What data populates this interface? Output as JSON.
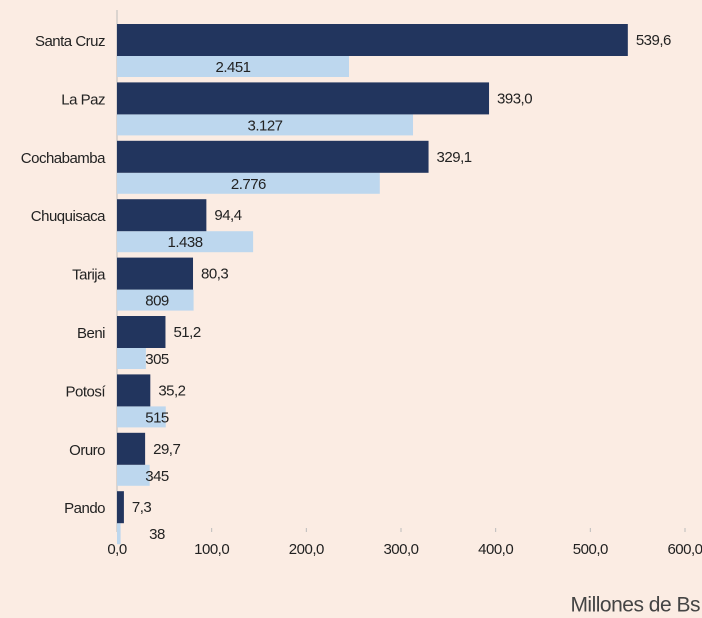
{
  "chart_data": {
    "type": "hbar",
    "x_label": "Millones de Bs",
    "categories": [
      "Santa Cruz",
      "La Paz",
      "Cochabamba",
      "Chuquisaca",
      "Tarija",
      "Beni",
      "Potosí",
      "Oruro",
      "Pando"
    ],
    "series": [
      {
        "color": "#22355e",
        "values": [
          539.6,
          393.0,
          329.1,
          94.4,
          80.3,
          51.2,
          35.2,
          29.7,
          7.3
        ],
        "value_labels": [
          "539,6",
          "393,0",
          "329,1",
          "94,4",
          "80,3",
          "51,2",
          "35,2",
          "29,7",
          "7,3"
        ]
      },
      {
        "color": "#bdd7ee",
        "axis": "x2",
        "values": [
          2451,
          3127,
          2776,
          1438,
          809,
          305,
          515,
          345,
          38
        ],
        "value_labels": [
          "2.451",
          "3.127",
          "2.776",
          "1.438",
          "809",
          "305",
          "515",
          "345",
          "38"
        ]
      }
    ],
    "xlim": [
      0,
      600
    ],
    "x2lim": [
      0,
      6000
    ],
    "xticks": [
      {
        "value": 0,
        "label": "0,0"
      },
      {
        "value": 100,
        "label": "100,0"
      },
      {
        "value": 200,
        "label": "200,0"
      },
      {
        "value": 300,
        "label": "300,0"
      },
      {
        "value": 400,
        "label": "400,0"
      },
      {
        "value": 500,
        "label": "500,0"
      },
      {
        "value": 600,
        "label": "600,0"
      }
    ]
  }
}
